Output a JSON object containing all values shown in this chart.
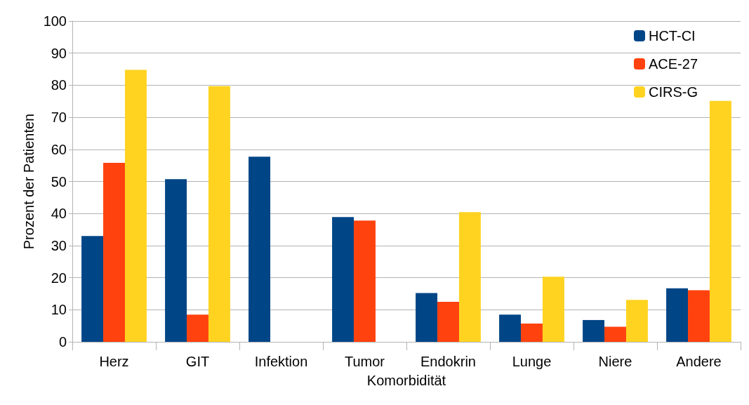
{
  "chart_data": {
    "type": "bar",
    "xlabel": "Komorbidität",
    "ylabel": "Prozent der Patienten",
    "categories": [
      "Herz",
      "GIT",
      "Infektion",
      "Tumor",
      "Endokrin",
      "Lunge",
      "Niere",
      "Andere"
    ],
    "series": [
      {
        "name": "HCT-CI",
        "color": "#004586",
        "values": [
          33,
          50.7,
          57.7,
          38.9,
          15.2,
          8.5,
          6.8,
          16.7
        ]
      },
      {
        "name": "ACE-27",
        "color": "#ff420e",
        "values": [
          55.8,
          8.5,
          0,
          37.8,
          12.5,
          5.7,
          4.7,
          16.1
        ]
      },
      {
        "name": "CIRS-G",
        "color": "#ffd320",
        "values": [
          84.8,
          79.7,
          0,
          0,
          40.4,
          20.3,
          13.1,
          75.1
        ]
      }
    ],
    "ylim": [
      0,
      100
    ],
    "yticks": [
      0,
      10,
      20,
      30,
      40,
      50,
      60,
      70,
      80,
      90,
      100
    ],
    "grid": "y",
    "legend": "top right"
  }
}
